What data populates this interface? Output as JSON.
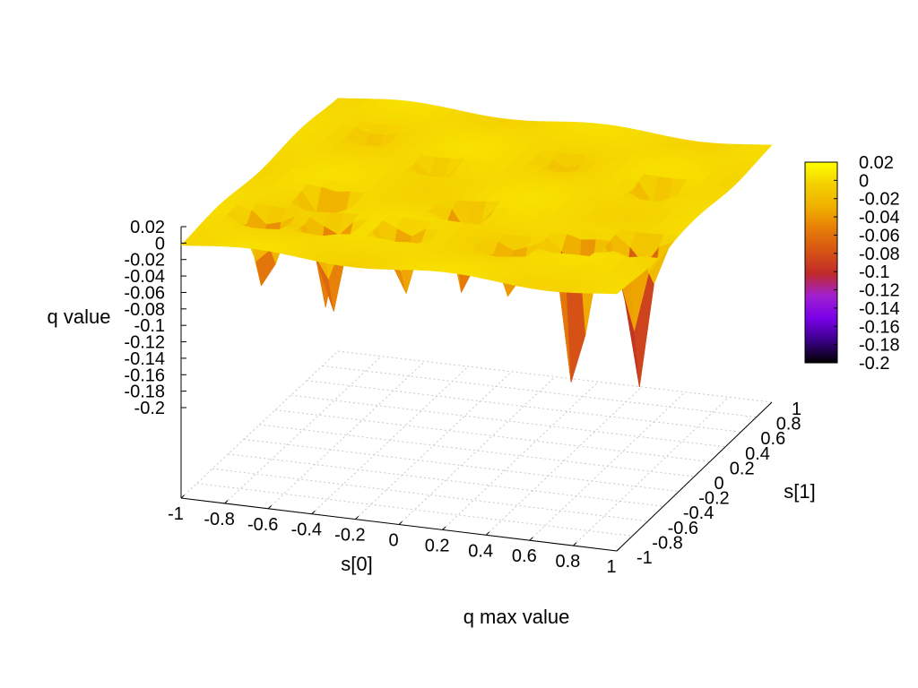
{
  "chart_data": {
    "type": "surface",
    "projection": "3d",
    "title": "q max value",
    "xlabel": "s[0]",
    "ylabel": "s[1]",
    "zlabel": "q value",
    "x_ticks": [
      "-1",
      "-0.8",
      "-0.6",
      "-0.4",
      "-0.2",
      "0",
      "0.2",
      "0.4",
      "0.6",
      "0.8",
      "1"
    ],
    "y_ticks": [
      "-1",
      "-0.8",
      "-0.6",
      "-0.4",
      "-0.2",
      "0",
      "0.2",
      "0.4",
      "0.6",
      "0.8",
      "1"
    ],
    "y_tick_labels_visible": [
      "-1",
      "-0.8",
      "-0.6",
      "-0.4",
      "-0.2",
      "0",
      "0.2",
      "0.4",
      "0.6",
      "0.8",
      "1"
    ],
    "z_ticks": [
      "0.02",
      "0",
      "-0.02",
      "-0.04",
      "-0.06",
      "-0.08",
      "-0.1",
      "-0.12",
      "-0.14",
      "-0.16",
      "-0.18",
      "-0.2"
    ],
    "xlim": [
      -1,
      1
    ],
    "ylim": [
      -1,
      1
    ],
    "zlim": [
      -0.2,
      0.02
    ],
    "grid": "base plane, dotted",
    "colorbar": {
      "position": "right",
      "range": [
        -0.2,
        0.02
      ],
      "labels": [
        "0.02",
        "0",
        "-0.02",
        "-0.04",
        "-0.06",
        "-0.08",
        "-0.1",
        "-0.12",
        "-0.14",
        "-0.16",
        "-0.18",
        "-0.2"
      ],
      "palette": [
        "#000000",
        "#3a0088",
        "#7a00e8",
        "#a020d0",
        "#c02a2a",
        "#d65414",
        "#e67c08",
        "#f0b000",
        "#f4d000",
        "#ffff00"
      ]
    },
    "surface": {
      "plateau_value": 0.0,
      "wells": [
        {
          "x": -0.78,
          "y": -0.55,
          "depth": -0.1
        },
        {
          "x": -0.48,
          "y": -0.55,
          "depth": -0.12
        },
        {
          "x": -0.15,
          "y": -0.55,
          "depth": -0.09
        },
        {
          "x": -0.6,
          "y": -0.25,
          "depth": -0.14
        },
        {
          "x": 0.02,
          "y": -0.2,
          "depth": -0.11
        },
        {
          "x": 0.35,
          "y": -0.55,
          "depth": -0.07
        },
        {
          "x": 0.62,
          "y": -0.45,
          "depth": -0.2
        },
        {
          "x": 0.86,
          "y": -0.35,
          "depth": -0.19
        },
        {
          "x": 0.7,
          "y": 0.35,
          "depth": -0.07
        },
        {
          "x": -0.3,
          "y": 0.3,
          "depth": -0.03
        },
        {
          "x": 0.2,
          "y": 0.55,
          "depth": -0.02
        },
        {
          "x": -0.7,
          "y": 0.6,
          "depth": -0.02
        }
      ]
    }
  }
}
